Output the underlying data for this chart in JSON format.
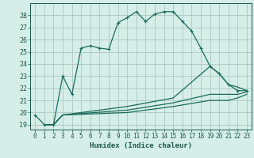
{
  "xlabel": "Humidex (Indice chaleur)",
  "bg_color": "#d6eee8",
  "line_color": "#1a6b5a",
  "grid_color": "#b0ccc4",
  "ylim": [
    18.6,
    29.0
  ],
  "xlim": [
    -0.5,
    23.5
  ],
  "yticks": [
    19,
    20,
    21,
    22,
    23,
    24,
    25,
    26,
    27,
    28
  ],
  "xticks": [
    0,
    1,
    2,
    3,
    4,
    5,
    6,
    7,
    8,
    9,
    10,
    11,
    12,
    13,
    14,
    15,
    16,
    17,
    18,
    19,
    20,
    21,
    22,
    23
  ],
  "lines": [
    {
      "x": [
        0,
        1,
        2,
        3,
        4,
        5,
        6,
        7,
        8,
        9,
        10,
        11,
        12,
        13,
        14,
        15,
        16,
        17,
        18,
        19,
        20,
        21,
        22,
        23
      ],
      "y": [
        19.8,
        19.0,
        19.0,
        23.0,
        21.5,
        25.3,
        25.5,
        25.3,
        25.2,
        27.4,
        27.8,
        28.3,
        27.5,
        28.1,
        28.3,
        28.3,
        27.5,
        26.7,
        25.3,
        23.8,
        23.2,
        22.3,
        21.8,
        21.8
      ],
      "marker": "+"
    },
    {
      "x": [
        1,
        2,
        3,
        10,
        15,
        19,
        20,
        21,
        22,
        23
      ],
      "y": [
        19.0,
        19.0,
        19.8,
        20.5,
        21.2,
        23.8,
        23.2,
        22.3,
        22.1,
        21.8
      ],
      "marker": null
    },
    {
      "x": [
        1,
        2,
        3,
        10,
        15,
        19,
        20,
        21,
        22,
        23
      ],
      "y": [
        19.0,
        19.0,
        19.8,
        20.2,
        20.8,
        21.5,
        21.5,
        21.5,
        21.5,
        21.7
      ],
      "marker": null
    },
    {
      "x": [
        1,
        2,
        3,
        10,
        15,
        19,
        20,
        21,
        22,
        23
      ],
      "y": [
        19.0,
        19.0,
        19.8,
        20.0,
        20.5,
        21.0,
        21.0,
        21.0,
        21.2,
        21.5
      ],
      "marker": null
    }
  ]
}
